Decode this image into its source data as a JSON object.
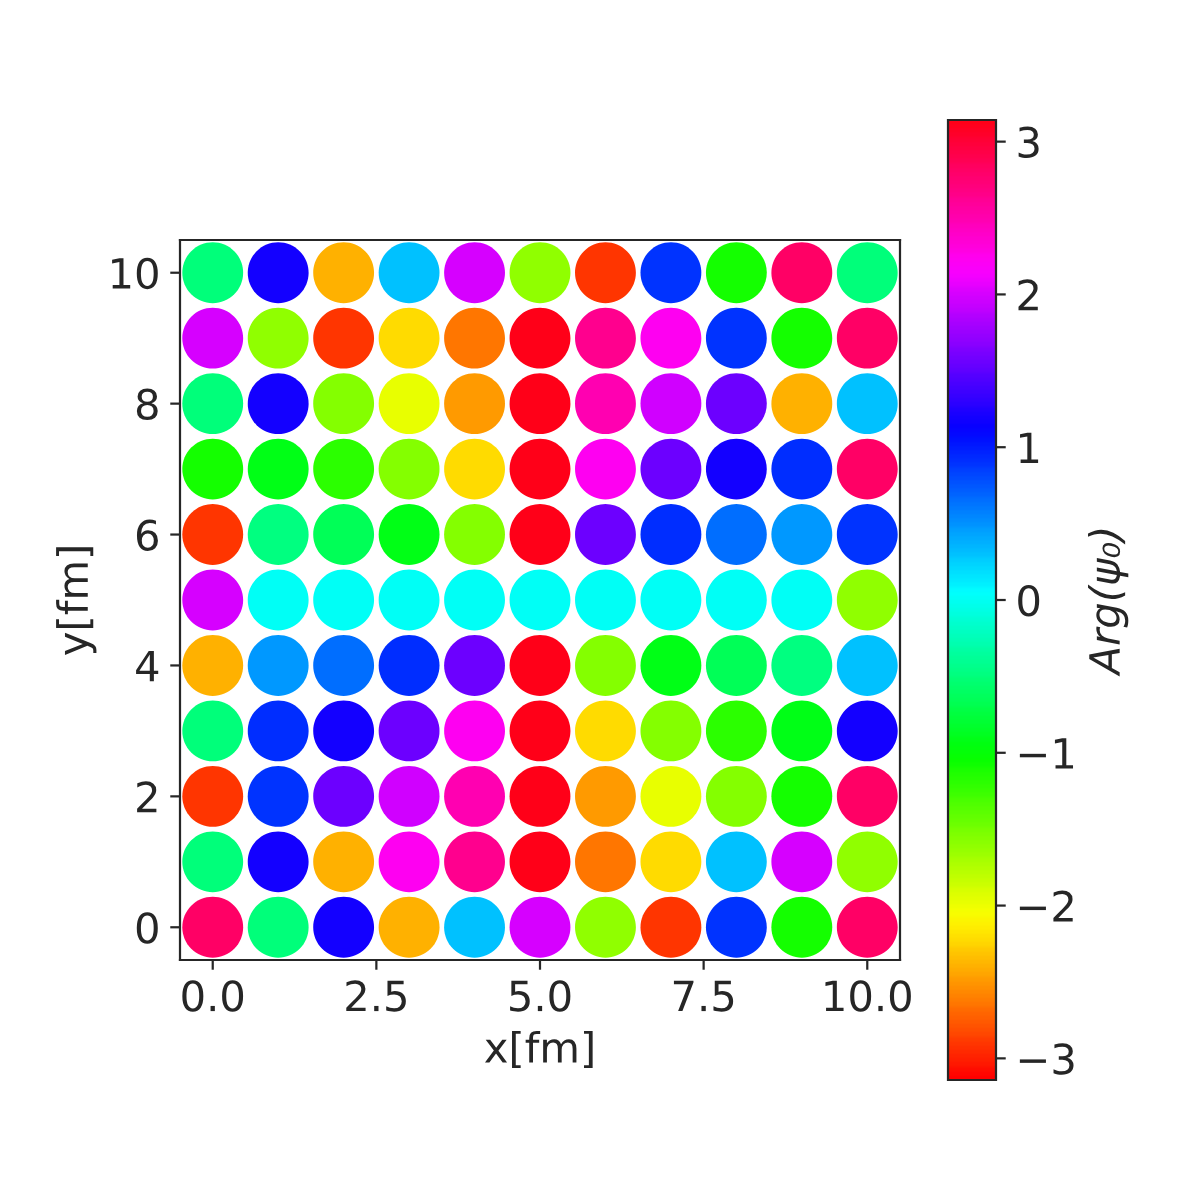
{
  "chart_data": {
    "type": "scatter",
    "xlabel": "x[fm]",
    "ylabel": "y[fm]",
    "clabel": "Arg(ψ₀)",
    "x": [
      0,
      1,
      2,
      3,
      4,
      5,
      6,
      7,
      8,
      9,
      10,
      0,
      1,
      2,
      3,
      4,
      5,
      6,
      7,
      8,
      9,
      10,
      0,
      1,
      2,
      3,
      4,
      5,
      6,
      7,
      8,
      9,
      10,
      0,
      1,
      2,
      3,
      4,
      5,
      6,
      7,
      8,
      9,
      10,
      0,
      1,
      2,
      3,
      4,
      5,
      6,
      7,
      8,
      9,
      10,
      0,
      1,
      2,
      3,
      4,
      5,
      6,
      7,
      8,
      9,
      10,
      0,
      1,
      2,
      3,
      4,
      5,
      6,
      7,
      8,
      9,
      10,
      0,
      1,
      2,
      3,
      4,
      5,
      6,
      7,
      8,
      9,
      10,
      0,
      1,
      2,
      3,
      4,
      5,
      6,
      7,
      8,
      9,
      10,
      0,
      1,
      2,
      3,
      4,
      5,
      6,
      7,
      8,
      9,
      10,
      0,
      1,
      2,
      3,
      4,
      5,
      6,
      7,
      8,
      9,
      10
    ],
    "values": [
      0,
      0,
      0,
      0,
      0,
      0,
      0,
      0,
      0,
      0,
      0,
      1,
      1,
      1,
      1,
      1,
      1,
      1,
      1,
      1,
      1,
      1,
      2,
      2,
      2,
      2,
      2,
      2,
      2,
      2,
      2,
      2,
      2,
      3,
      3,
      3,
      3,
      3,
      3,
      3,
      3,
      3,
      3,
      3,
      4,
      4,
      4,
      4,
      4,
      4,
      4,
      4,
      4,
      4,
      4,
      5,
      5,
      5,
      5,
      5,
      5,
      5,
      5,
      5,
      5,
      5,
      6,
      6,
      6,
      6,
      6,
      6,
      6,
      6,
      6,
      6,
      6,
      7,
      7,
      7,
      7,
      7,
      7,
      7,
      7,
      7,
      7,
      7,
      8,
      8,
      8,
      8,
      8,
      8,
      8,
      8,
      8,
      8,
      8,
      9,
      9,
      9,
      9,
      9,
      9,
      9,
      9,
      9,
      9,
      9,
      10,
      10,
      10,
      10,
      10,
      10,
      10,
      10,
      10,
      10,
      10
    ],
    "cvalues": [
      2.8,
      -0.5,
      1.2,
      -2.4,
      0.3,
      2.0,
      -1.6,
      -2.9,
      0.9,
      -1.1,
      2.8,
      -0.5,
      1.2,
      -2.4,
      2.21,
      2.65,
      3.14,
      -2.65,
      -2.21,
      0.3,
      2.0,
      -1.6,
      -2.9,
      0.9,
      1.57,
      1.97,
      2.5,
      3.14,
      -2.5,
      -1.97,
      -1.57,
      -1.1,
      2.8,
      -0.5,
      0.93,
      1.18,
      1.57,
      2.21,
      3.14,
      -2.21,
      -1.57,
      -1.18,
      -0.93,
      1.2,
      -2.4,
      0.49,
      0.64,
      0.93,
      1.57,
      3.14,
      -1.57,
      -0.93,
      -0.64,
      -0.49,
      0.3,
      2.0,
      0,
      0,
      0,
      0,
      0,
      0,
      0,
      0,
      0,
      -1.6,
      -2.9,
      -0.49,
      -0.64,
      -0.93,
      -1.57,
      3.14,
      1.57,
      0.93,
      0.64,
      0.49,
      0.9,
      -1.1,
      -0.93,
      -1.18,
      -1.57,
      -2.21,
      3.14,
      2.21,
      1.57,
      1.18,
      0.93,
      2.8,
      -0.5,
      1.2,
      -1.57,
      -1.97,
      -2.5,
      3.14,
      2.5,
      1.97,
      1.57,
      -2.4,
      0.3,
      2.0,
      -1.6,
      -2.9,
      -2.21,
      -2.65,
      3.14,
      2.65,
      2.21,
      0.9,
      -1.1,
      2.8,
      -0.5,
      1.2,
      -2.4,
      0.3,
      2.0,
      -1.6,
      -2.9,
      0.9,
      -1.1,
      2.8,
      -0.5
    ],
    "clim": [
      -3.14159,
      3.14159
    ],
    "cticks": [
      -3,
      -2,
      -1,
      0,
      1,
      2,
      3
    ],
    "xlim": [
      -0.5,
      10.5
    ],
    "ylim": [
      -0.5,
      10.5
    ],
    "xticks": [
      {
        "value": 0,
        "label": "0.0"
      },
      {
        "value": 2.5,
        "label": "2.5"
      },
      {
        "value": 5,
        "label": "5.0"
      },
      {
        "value": 7.5,
        "label": "7.5"
      },
      {
        "value": 10,
        "label": "10.0"
      }
    ],
    "yticks": [
      0,
      2,
      4,
      6,
      8,
      10
    ],
    "marker": "circle",
    "grid": false
  }
}
